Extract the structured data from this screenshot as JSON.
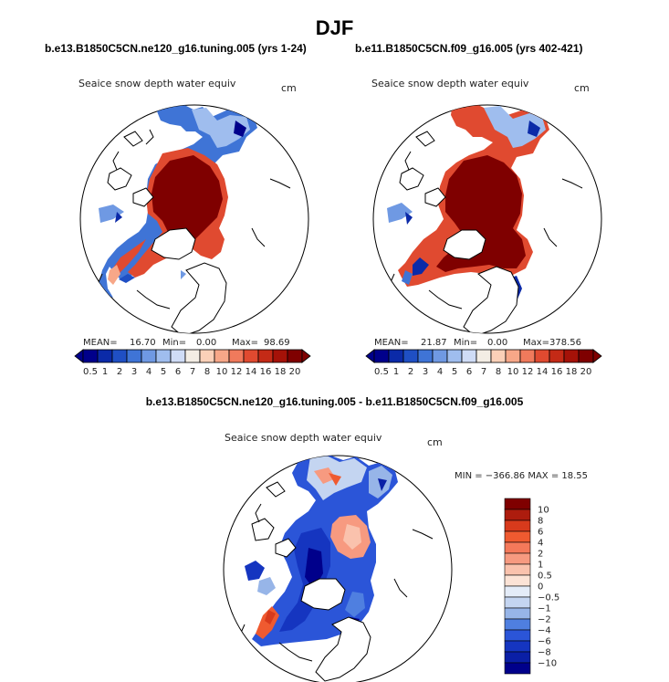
{
  "title": "DJF",
  "colors": {
    "land_line": "#000000",
    "ocean": "#ffffff",
    "high": "#7f0000",
    "low": "#00008b"
  },
  "chart_data": [
    {
      "type": "heatmap",
      "panel": "top-left",
      "subtitle": "b.e13.B1850C5CN.ne120_g16.tuning.005 (yrs 1-24)",
      "plot_title": "Seaice snow depth water equiv",
      "units": "cm",
      "stats": {
        "mean_label": "MEAN=",
        "mean": "16.70",
        "min_label": "Min=",
        "min": "0.00",
        "max_label": "Max=",
        "max": "98.69"
      },
      "levels": [
        "0.5",
        "1",
        "2",
        "3",
        "4",
        "5",
        "6",
        "7",
        "8",
        "10",
        "12",
        "14",
        "16",
        "18",
        "20"
      ],
      "palette": [
        "#00008b",
        "#0b2aa8",
        "#1f4fc4",
        "#3f74d6",
        "#6f99e3",
        "#9fbdee",
        "#cfdcf6",
        "#f3ede4",
        "#fbd0b8",
        "#f7a788",
        "#f07a5c",
        "#e04a30",
        "#c42a16",
        "#a51208",
        "#7f0000"
      ]
    },
    {
      "type": "heatmap",
      "panel": "top-right",
      "subtitle": "b.e11.B1850C5CN.f09_g16.005 (yrs 402-421)",
      "plot_title": "Seaice snow depth water equiv",
      "units": "cm",
      "stats": {
        "mean_label": "MEAN=",
        "mean": "21.87",
        "min_label": "Min=",
        "min": "0.00",
        "max_label": "Max=",
        "max": "378.56"
      },
      "levels": [
        "0.5",
        "1",
        "2",
        "3",
        "4",
        "5",
        "6",
        "7",
        "8",
        "10",
        "12",
        "14",
        "16",
        "18",
        "20"
      ],
      "palette": [
        "#00008b",
        "#0b2aa8",
        "#1f4fc4",
        "#3f74d6",
        "#6f99e3",
        "#9fbdee",
        "#cfdcf6",
        "#f3ede4",
        "#fbd0b8",
        "#f7a788",
        "#f07a5c",
        "#e04a30",
        "#c42a16",
        "#a51208",
        "#7f0000"
      ]
    },
    {
      "type": "heatmap",
      "panel": "bottom",
      "subtitle": "b.e13.B1850C5CN.ne120_g16.tuning.005 - b.e11.B1850C5CN.f09_g16.005",
      "plot_title": "Seaice snow depth water equiv",
      "units": "cm",
      "stats": {
        "text": "MIN = −366.86 MAX =   18.55"
      },
      "levels": [
        "10",
        "8",
        "6",
        "4",
        "2",
        "1",
        "0.5",
        "0",
        "−0.5",
        "−1",
        "−2",
        "−4",
        "−6",
        "−8",
        "−10"
      ],
      "palette": [
        "#7f0000",
        "#ad1c0e",
        "#d83a1c",
        "#ef5a30",
        "#f4795a",
        "#f79a80",
        "#fac2ad",
        "#fce3d6",
        "#e4ecf8",
        "#c4d5f1",
        "#97b5e8",
        "#4f7fe0",
        "#2b55d8",
        "#1535c0",
        "#0a1fa6",
        "#00008b"
      ]
    }
  ]
}
